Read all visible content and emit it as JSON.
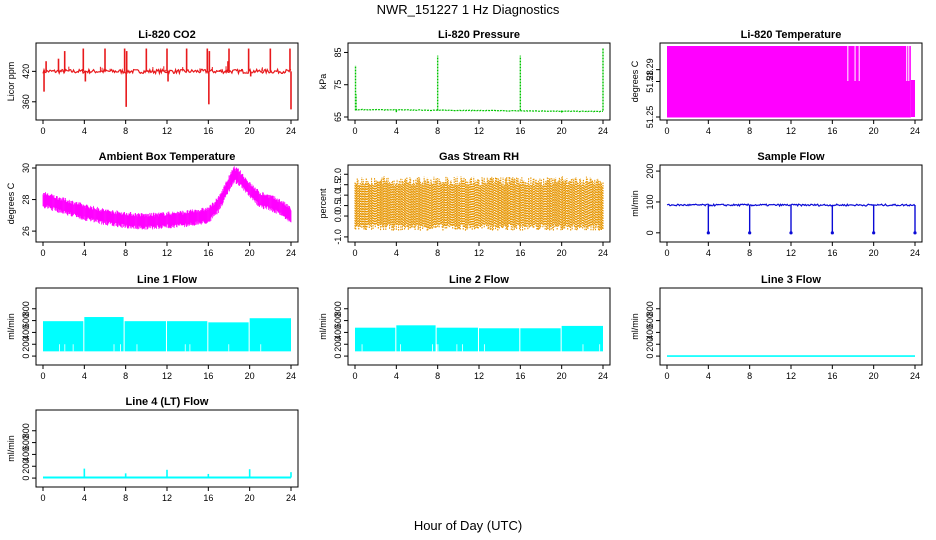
{
  "page": {
    "title": "NWR_151227  1 Hz Diagnostics",
    "x_axis_title": "Hour of Day (UTC)"
  },
  "colors": {
    "red": "#e8191c",
    "green": "#00c400",
    "magenta": "#ff00ff",
    "orange": "#e69500",
    "blue": "#0b0bd6",
    "cyan": "#00ffff",
    "axis": "#000000"
  },
  "chart_data": [
    {
      "type": "line",
      "title": "Li-820 CO2",
      "ylabel": "Licor ppm",
      "color": "#e8191c",
      "xlim": [
        0,
        24
      ],
      "ylim": [
        330,
        470
      ],
      "xticks": [
        0,
        4,
        8,
        12,
        16,
        20,
        24
      ],
      "yticks": [
        360,
        420
      ],
      "baseline": 420,
      "noise": 4,
      "spikes": [
        [
          0.1,
          380
        ],
        [
          0.3,
          440
        ],
        [
          1.5,
          445
        ],
        [
          2.1,
          460
        ],
        [
          3.9,
          465
        ],
        [
          4.1,
          400
        ],
        [
          6.0,
          465
        ],
        [
          7.9,
          465
        ],
        [
          8.05,
          350
        ],
        [
          8.1,
          460
        ],
        [
          10.0,
          465
        ],
        [
          12.0,
          465
        ],
        [
          12.1,
          400
        ],
        [
          13.9,
          465
        ],
        [
          15.9,
          465
        ],
        [
          16.05,
          355
        ],
        [
          16.1,
          460
        ],
        [
          17.9,
          440
        ],
        [
          18.0,
          465
        ],
        [
          19.9,
          465
        ],
        [
          20.1,
          410
        ],
        [
          22.0,
          465
        ],
        [
          23.9,
          465
        ],
        [
          24.0,
          345
        ]
      ]
    },
    {
      "type": "line",
      "title": "Li-820 Pressure",
      "ylabel": "kPa",
      "color": "#00c400",
      "xlim": [
        0,
        24
      ],
      "ylim": [
        65,
        87
      ],
      "xticks": [
        0,
        4,
        8,
        12,
        16,
        20,
        24
      ],
      "yticks": [
        65,
        75,
        85
      ],
      "baseline_start": 67.3,
      "baseline_end": 66.7,
      "noise": 0.2,
      "spikes": [
        [
          0.05,
          81
        ],
        [
          0.1,
          72
        ],
        [
          8.0,
          84
        ],
        [
          16.0,
          84
        ],
        [
          24.0,
          86.5
        ],
        [
          4.0,
          66.5
        ],
        [
          20.0,
          66.3
        ]
      ]
    },
    {
      "type": "band",
      "title": "Li-820 Temperature",
      "ylabel": "degrees C",
      "color": "#ff00ff",
      "xlim": [
        0,
        24
      ],
      "ylim": [
        51.25,
        51.31
      ],
      "xticks": [
        0,
        4,
        8,
        12,
        16,
        20,
        24
      ],
      "yticks": [
        51.25,
        51.28,
        51.29
      ],
      "ytick_labels": [
        "51.25",
        "51.28",
        "51.29"
      ],
      "note": "Sensor toggles between two quantised levels throughout the day"
    },
    {
      "type": "line",
      "title": "Ambient Box Temperature",
      "ylabel": "degrees C",
      "color": "#ff00ff",
      "xlim": [
        0,
        24
      ],
      "ylim": [
        25.5,
        30
      ],
      "xticks": [
        0,
        4,
        8,
        12,
        16,
        20,
        24
      ],
      "yticks": [
        26,
        28,
        30
      ],
      "series": [
        {
          "x": [
            0,
            2,
            4,
            6,
            8,
            10,
            12,
            14,
            16,
            17,
            18,
            18.5,
            19,
            20,
            21,
            22,
            23,
            24
          ],
          "values": [
            28.0,
            27.6,
            27.2,
            26.9,
            26.7,
            26.6,
            26.7,
            26.8,
            27.0,
            27.7,
            29.0,
            29.6,
            29.4,
            28.6,
            28.0,
            27.8,
            27.5,
            27.0
          ]
        }
      ],
      "noise": 0.45
    },
    {
      "type": "band",
      "title": "Gas Stream RH",
      "ylabel": "percent",
      "color": "#e69500",
      "xlim": [
        0,
        24
      ],
      "ylim": [
        -1.1,
        2.3
      ],
      "xticks": [
        0,
        4,
        8,
        12,
        16,
        20,
        24
      ],
      "yticks": [
        -1.0,
        0.0,
        0.5,
        1.0,
        1.5,
        2.0
      ],
      "ytick_labels": [
        "-1.0",
        "0.0",
        "0.5",
        "1.0",
        "1.5",
        "2.0"
      ],
      "band_low": -0.7,
      "band_high": 1.9
    },
    {
      "type": "line",
      "title": "Sample Flow",
      "ylabel": "ml/min",
      "color": "#0b0bd6",
      "xlim": [
        0,
        24
      ],
      "ylim": [
        -20,
        210
      ],
      "xticks": [
        0,
        4,
        8,
        12,
        16,
        20,
        24
      ],
      "yticks": [
        0,
        100,
        200
      ],
      "baseline": 90,
      "noise": 3,
      "dips": [
        4.0,
        8.0,
        12.0,
        16.0,
        20.0,
        24.0
      ]
    },
    {
      "type": "band",
      "title": "Line 1 Flow",
      "ylabel": "ml/min",
      "color": "#00ffff",
      "xlim": [
        0,
        24
      ],
      "ylim": [
        -100,
        1100
      ],
      "xticks": [
        0,
        4,
        8,
        12,
        16,
        20,
        24
      ],
      "yticks": [
        0,
        200,
        400,
        600,
        800
      ],
      "band_low": 80,
      "segments": [
        [
          0,
          3.9,
          590
        ],
        [
          4.0,
          7.8,
          660
        ],
        [
          7.9,
          11.9,
          590
        ],
        [
          12.0,
          15.9,
          590
        ],
        [
          16.0,
          19.9,
          570
        ],
        [
          20.0,
          24.0,
          640
        ]
      ]
    },
    {
      "type": "band",
      "title": "Line 2 Flow",
      "ylabel": "ml/min",
      "color": "#00ffff",
      "xlim": [
        0,
        24
      ],
      "ylim": [
        -100,
        1100
      ],
      "xticks": [
        0,
        4,
        8,
        12,
        16,
        20,
        24
      ],
      "yticks": [
        0,
        200,
        400,
        600,
        800
      ],
      "band_low": 80,
      "segments": [
        [
          0,
          3.9,
          480
        ],
        [
          4.0,
          7.8,
          520
        ],
        [
          7.9,
          11.9,
          480
        ],
        [
          12.0,
          15.9,
          470
        ],
        [
          16.0,
          19.9,
          470
        ],
        [
          20.0,
          24.0,
          510
        ]
      ]
    },
    {
      "type": "line",
      "title": "Line 3 Flow",
      "ylabel": "ml/min",
      "color": "#00ffff",
      "xlim": [
        0,
        24
      ],
      "ylim": [
        -100,
        1100
      ],
      "xticks": [
        0,
        4,
        8,
        12,
        16,
        20,
        24
      ],
      "yticks": [
        0,
        200,
        400,
        600,
        800
      ],
      "baseline": 0,
      "noise": 0
    },
    {
      "type": "line",
      "title": "Line 4 (LT) Flow",
      "ylabel": "ml/min",
      "color": "#00ffff",
      "xlim": [
        0,
        24
      ],
      "ylim": [
        -100,
        1100
      ],
      "xticks": [
        0,
        4,
        8,
        12,
        16,
        20,
        24
      ],
      "yticks": [
        0,
        200,
        400,
        600,
        800
      ],
      "baseline": 10,
      "noise": 2,
      "spikes": [
        [
          4.0,
          160
        ],
        [
          8.0,
          80
        ],
        [
          12.0,
          140
        ],
        [
          16.0,
          70
        ],
        [
          20.0,
          150
        ],
        [
          24.0,
          100
        ]
      ]
    }
  ]
}
